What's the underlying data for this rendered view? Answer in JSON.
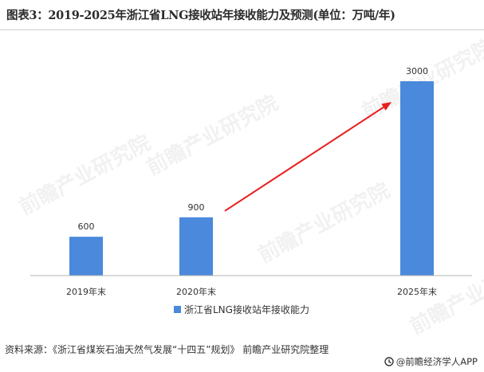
{
  "title": "图表3：2019-2025年浙江省LNG接收站年接收能力及预测(单位：万吨/年)",
  "source": "资料来源：《浙江省煤炭石油天然气发展“十四五”规划》 前瞻产业研究院整理",
  "brand": "@前瞻经济学人APP",
  "watermark": "前瞻产业研究院",
  "colors": {
    "bar": "#4a89dc",
    "arrow": "#e8201d",
    "axis": "#b5b5b5"
  },
  "chart_data": {
    "type": "bar",
    "categories": [
      "2019年末",
      "2020年末",
      "2025年末"
    ],
    "series": [
      {
        "name": "浙江省LNG接收站年接收能力",
        "values": [
          600,
          900,
          3000
        ]
      }
    ],
    "data_labels": [
      "600",
      "900",
      "3000"
    ],
    "legend_position": "bottom",
    "grid": false,
    "annotations": [
      {
        "type": "arrow",
        "from_category": "2020年末",
        "to_category": "2025年末"
      }
    ]
  }
}
